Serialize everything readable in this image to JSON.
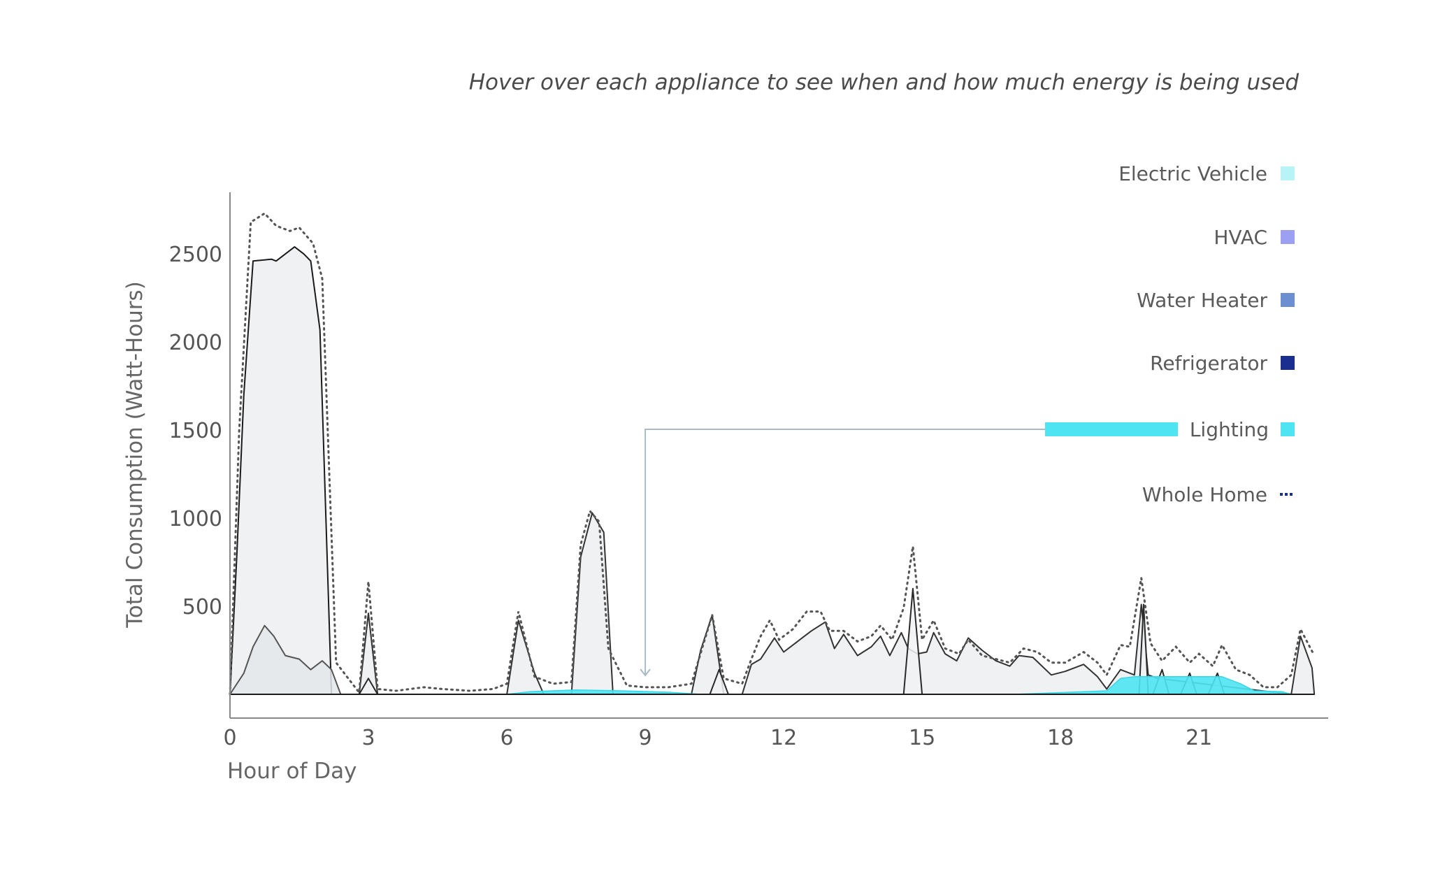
{
  "subtitle": "Hover over each appliance to see when and how much energy is being used",
  "chart_data": {
    "type": "area",
    "xlabel": "Hour of Day",
    "ylabel": "Total Consumption (Watt-Hours)",
    "xlim": [
      0,
      23.8
    ],
    "ylim": [
      0,
      2850
    ],
    "x_ticks": [
      0,
      3,
      6,
      9,
      12,
      15,
      18,
      21
    ],
    "y_ticks": [
      500,
      1000,
      1500,
      2000,
      2500
    ],
    "grid": false,
    "legend_position": "top-right",
    "legend": [
      {
        "name": "Electric Vehicle",
        "color": "#b8f4f7",
        "style": "box"
      },
      {
        "name": "HVAC",
        "color": "#9da0f2",
        "style": "box"
      },
      {
        "name": "Water Heater",
        "color": "#6b8fd1",
        "style": "box"
      },
      {
        "name": "Refrigerator",
        "color": "#1a2e8f",
        "style": "box"
      },
      {
        "name": "Lighting",
        "color": "#4ee4f2",
        "style": "box"
      },
      {
        "name": "Whole Home",
        "color": "#1a2e8f",
        "style": "dots"
      }
    ],
    "highlight": {
      "series": "Lighting",
      "x": 9
    },
    "series": [
      {
        "name": "Electric Vehicle",
        "color": "#eceff1",
        "stroke": "#1a1a1a",
        "points": [
          [
            0,
            0
          ],
          [
            0.15,
            800
          ],
          [
            0.3,
            1700
          ],
          [
            0.5,
            2460
          ],
          [
            0.9,
            2470
          ],
          [
            1.0,
            2460
          ],
          [
            1.2,
            2500
          ],
          [
            1.4,
            2540
          ],
          [
            1.6,
            2500
          ],
          [
            1.75,
            2460
          ],
          [
            1.95,
            2070
          ],
          [
            2.2,
            0
          ]
        ]
      },
      {
        "name": "HVAC",
        "color": "#e4e8ea",
        "stroke": "#555555",
        "points": [
          [
            0,
            0
          ],
          [
            0.3,
            120
          ],
          [
            0.5,
            270
          ],
          [
            0.75,
            390
          ],
          [
            0.95,
            330
          ],
          [
            1.2,
            220
          ],
          [
            1.5,
            200
          ],
          [
            1.75,
            140
          ],
          [
            2.0,
            190
          ],
          [
            2.2,
            140
          ],
          [
            2.4,
            0
          ]
        ]
      },
      {
        "name": "Water Heater",
        "color": "#eceff1",
        "stroke": "#333333",
        "points": [
          [
            2.8,
            0
          ],
          [
            3.0,
            460
          ],
          [
            3.2,
            0
          ],
          [
            6.0,
            0
          ],
          [
            6.25,
            420
          ],
          [
            6.6,
            120
          ],
          [
            6.8,
            0
          ],
          [
            7.4,
            0
          ],
          [
            7.6,
            780
          ],
          [
            7.85,
            1030
          ],
          [
            8.1,
            920
          ],
          [
            8.3,
            0
          ],
          [
            10.0,
            0
          ],
          [
            10.2,
            250
          ],
          [
            10.45,
            450
          ],
          [
            10.7,
            0
          ],
          [
            11.1,
            0
          ],
          [
            11.3,
            170
          ],
          [
            11.5,
            200
          ],
          [
            11.8,
            320
          ],
          [
            12.0,
            240
          ],
          [
            12.3,
            300
          ],
          [
            12.6,
            360
          ],
          [
            12.9,
            410
          ],
          [
            13.1,
            260
          ],
          [
            13.3,
            340
          ],
          [
            13.6,
            220
          ],
          [
            13.9,
            270
          ],
          [
            14.1,
            330
          ],
          [
            14.3,
            220
          ],
          [
            14.55,
            350
          ],
          [
            14.7,
            260
          ],
          [
            14.9,
            230
          ],
          [
            15.1,
            240
          ],
          [
            15.25,
            350
          ],
          [
            15.5,
            230
          ],
          [
            15.75,
            190
          ],
          [
            16.0,
            320
          ],
          [
            16.3,
            250
          ],
          [
            16.6,
            190
          ],
          [
            16.9,
            160
          ],
          [
            17.1,
            220
          ],
          [
            17.4,
            210
          ],
          [
            17.8,
            110
          ],
          [
            18.1,
            130
          ],
          [
            18.5,
            170
          ],
          [
            18.8,
            100
          ],
          [
            19.0,
            30
          ],
          [
            19.3,
            140
          ],
          [
            19.6,
            110
          ],
          [
            19.75,
            510
          ],
          [
            19.9,
            110
          ],
          [
            20.1,
            90
          ],
          [
            23.0,
            0
          ],
          [
            23.2,
            330
          ],
          [
            23.45,
            150
          ],
          [
            23.5,
            0
          ]
        ]
      },
      {
        "name": "Refrigerator",
        "color": "#f0f2f3",
        "stroke": "#2a2a2a",
        "points": [
          [
            2.8,
            0
          ],
          [
            3.0,
            90
          ],
          [
            3.2,
            0
          ],
          [
            10.4,
            0
          ],
          [
            10.6,
            140
          ],
          [
            10.8,
            0
          ],
          [
            14.6,
            0
          ],
          [
            14.8,
            600
          ],
          [
            15.0,
            0
          ],
          [
            19.7,
            0
          ],
          [
            19.8,
            510
          ],
          [
            19.9,
            0
          ],
          [
            20.0,
            0
          ],
          [
            20.2,
            140
          ],
          [
            20.35,
            0
          ],
          [
            20.6,
            0
          ],
          [
            20.8,
            120
          ],
          [
            20.95,
            0
          ],
          [
            21.2,
            0
          ],
          [
            21.4,
            120
          ],
          [
            21.55,
            0
          ]
        ]
      },
      {
        "name": "Lighting",
        "color": "#4ee4f2",
        "stroke": "#3ad6e6",
        "points": [
          [
            6.0,
            0
          ],
          [
            6.5,
            15
          ],
          [
            7.5,
            25
          ],
          [
            8.5,
            20
          ],
          [
            9.5,
            12
          ],
          [
            10.2,
            0
          ],
          [
            17.0,
            0
          ],
          [
            18.0,
            10
          ],
          [
            19.0,
            20
          ],
          [
            19.3,
            90
          ],
          [
            19.6,
            100
          ],
          [
            21.5,
            100
          ],
          [
            21.9,
            60
          ],
          [
            22.2,
            20
          ],
          [
            22.8,
            15
          ],
          [
            23.0,
            0
          ]
        ]
      }
    ],
    "whole_home": {
      "name": "Whole Home",
      "color": "#555555",
      "points": [
        [
          0,
          0
        ],
        [
          0.2,
          1500
        ],
        [
          0.45,
          2680
        ],
        [
          0.75,
          2730
        ],
        [
          1.0,
          2660
        ],
        [
          1.3,
          2630
        ],
        [
          1.5,
          2650
        ],
        [
          1.8,
          2560
        ],
        [
          2.0,
          2360
        ],
        [
          2.3,
          180
        ],
        [
          2.8,
          10
        ],
        [
          3.0,
          640
        ],
        [
          3.2,
          30
        ],
        [
          3.6,
          20
        ],
        [
          4.2,
          40
        ],
        [
          4.6,
          30
        ],
        [
          5.2,
          20
        ],
        [
          5.7,
          30
        ],
        [
          6.0,
          60
        ],
        [
          6.25,
          470
        ],
        [
          6.6,
          100
        ],
        [
          7.0,
          60
        ],
        [
          7.4,
          70
        ],
        [
          7.6,
          850
        ],
        [
          7.8,
          1040
        ],
        [
          8.0,
          980
        ],
        [
          8.2,
          260
        ],
        [
          8.6,
          50
        ],
        [
          9.0,
          40
        ],
        [
          9.5,
          40
        ],
        [
          10.0,
          60
        ],
        [
          10.45,
          450
        ],
        [
          10.7,
          90
        ],
        [
          11.1,
          60
        ],
        [
          11.3,
          200
        ],
        [
          11.5,
          330
        ],
        [
          11.7,
          420
        ],
        [
          11.9,
          310
        ],
        [
          12.2,
          370
        ],
        [
          12.5,
          470
        ],
        [
          12.8,
          470
        ],
        [
          13.0,
          360
        ],
        [
          13.3,
          360
        ],
        [
          13.6,
          300
        ],
        [
          13.9,
          330
        ],
        [
          14.1,
          390
        ],
        [
          14.35,
          310
        ],
        [
          14.6,
          490
        ],
        [
          14.8,
          840
        ],
        [
          15.0,
          310
        ],
        [
          15.25,
          420
        ],
        [
          15.5,
          260
        ],
        [
          15.8,
          230
        ],
        [
          16.0,
          310
        ],
        [
          16.3,
          220
        ],
        [
          16.6,
          200
        ],
        [
          16.9,
          180
        ],
        [
          17.2,
          260
        ],
        [
          17.5,
          240
        ],
        [
          17.8,
          180
        ],
        [
          18.1,
          180
        ],
        [
          18.5,
          240
        ],
        [
          18.8,
          180
        ],
        [
          19.0,
          110
        ],
        [
          19.3,
          280
        ],
        [
          19.5,
          270
        ],
        [
          19.75,
          660
        ],
        [
          19.95,
          290
        ],
        [
          20.2,
          190
        ],
        [
          20.5,
          270
        ],
        [
          20.8,
          180
        ],
        [
          21.0,
          230
        ],
        [
          21.3,
          160
        ],
        [
          21.5,
          280
        ],
        [
          21.8,
          140
        ],
        [
          22.1,
          110
        ],
        [
          22.4,
          40
        ],
        [
          22.7,
          40
        ],
        [
          23.0,
          110
        ],
        [
          23.2,
          370
        ],
        [
          23.5,
          220
        ]
      ]
    }
  }
}
